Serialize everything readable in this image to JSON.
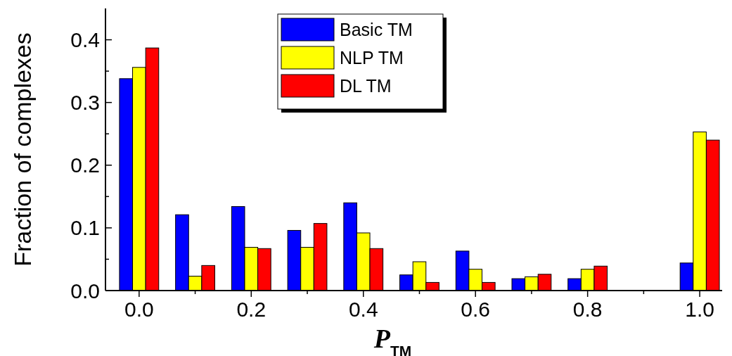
{
  "chart_data": {
    "type": "bar",
    "xlabel": "P$_{TM}$",
    "ylabel": "Fraction of complexes",
    "x": [
      0.0,
      0.1,
      0.2,
      0.3,
      0.4,
      0.5,
      0.6,
      0.7,
      0.8,
      1.0
    ],
    "series": [
      {
        "name": "Basic TM",
        "color": "#0000ff",
        "values": [
          0.338,
          0.121,
          0.134,
          0.096,
          0.14,
          0.025,
          0.063,
          0.019,
          0.019,
          0.044
        ]
      },
      {
        "name": "NLP TM",
        "color": "#ffff00",
        "values": [
          0.356,
          0.023,
          0.069,
          0.069,
          0.092,
          0.046,
          0.034,
          0.022,
          0.034,
          0.253
        ]
      },
      {
        "name": "DL TM",
        "color": "#ff0000",
        "values": [
          0.387,
          0.04,
          0.067,
          0.107,
          0.067,
          0.013,
          0.013,
          0.026,
          0.039,
          0.24
        ]
      }
    ],
    "xlim": [
      -0.06,
      1.04
    ],
    "ylim": [
      0,
      0.45
    ],
    "xticks": [
      {
        "value": 0,
        "label": "0.0"
      },
      {
        "value": 0.1,
        "label": null
      },
      {
        "value": 0.2,
        "label": "0.2"
      },
      {
        "value": 0.3,
        "label": null
      },
      {
        "value": 0.4,
        "label": "0.4"
      },
      {
        "value": 0.5,
        "label": null
      },
      {
        "value": 0.6,
        "label": "0.6"
      },
      {
        "value": 0.7,
        "label": null
      },
      {
        "value": 0.8,
        "label": "0.8"
      },
      {
        "value": 0.9,
        "label": null
      },
      {
        "value": 1.0,
        "label": "1.0"
      }
    ],
    "yticks": [
      {
        "value": 0,
        "label": "0.0"
      },
      {
        "value": 0.05,
        "label": null
      },
      {
        "value": 0.1,
        "label": "0.1"
      },
      {
        "value": 0.15,
        "label": null
      },
      {
        "value": 0.2,
        "label": "0.2"
      },
      {
        "value": 0.25,
        "label": null
      },
      {
        "value": 0.3,
        "label": "0.3"
      },
      {
        "value": 0.35,
        "label": null
      },
      {
        "value": 0.4,
        "label": "0.4"
      }
    ],
    "legend": "top",
    "grid": false
  }
}
